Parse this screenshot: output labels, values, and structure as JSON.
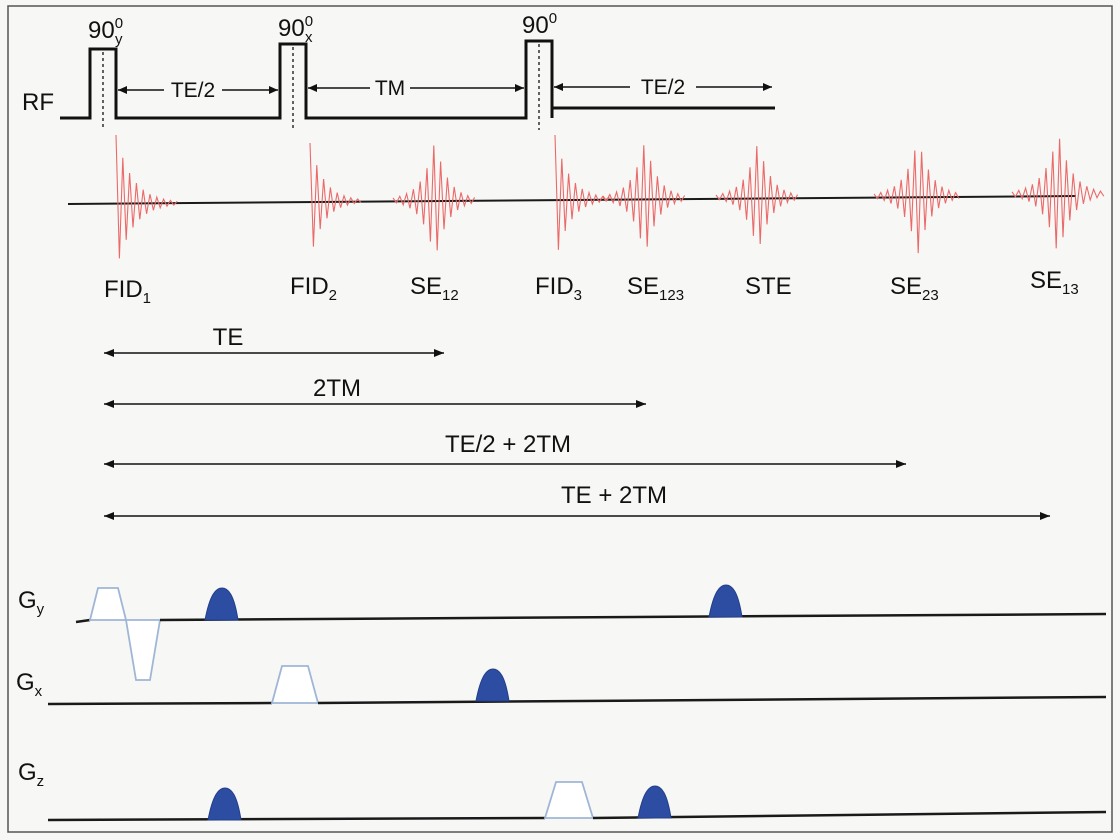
{
  "rf": {
    "label": "RF",
    "pulses": [
      {
        "angle": "90",
        "sup": "0",
        "sub": "y"
      },
      {
        "angle": "90",
        "sup": "0",
        "sub": "x"
      },
      {
        "angle": "90",
        "sup": "0",
        "sub": ""
      }
    ],
    "intervals": [
      "TE/2",
      "TM",
      "TE/2"
    ]
  },
  "signals": [
    {
      "name": "FID",
      "sub": "1",
      "shape": "decay"
    },
    {
      "name": "FID",
      "sub": "2",
      "shape": "decay"
    },
    {
      "name": "SE",
      "sub": "12",
      "shape": "echo"
    },
    {
      "name": "FID",
      "sub": "3",
      "shape": "decay"
    },
    {
      "name": "SE",
      "sub": "123",
      "shape": "echo"
    },
    {
      "name": "STE",
      "sub": "",
      "shape": "echo"
    },
    {
      "name": "SE",
      "sub": "23",
      "shape": "echo"
    },
    {
      "name": "SE",
      "sub": "13",
      "shape": "echo"
    }
  ],
  "timings": [
    "TE",
    "2TM",
    "TE/2 + 2TM",
    "TE + 2TM"
  ],
  "gradients": [
    {
      "name": "G",
      "sub": "y"
    },
    {
      "name": "G",
      "sub": "x"
    },
    {
      "name": "G",
      "sub": "z"
    }
  ],
  "colors": {
    "signal": "#ea6a6a",
    "crusher": "#2d4da3",
    "gradient_outline": "#9fb6d6",
    "line": "#111111"
  }
}
